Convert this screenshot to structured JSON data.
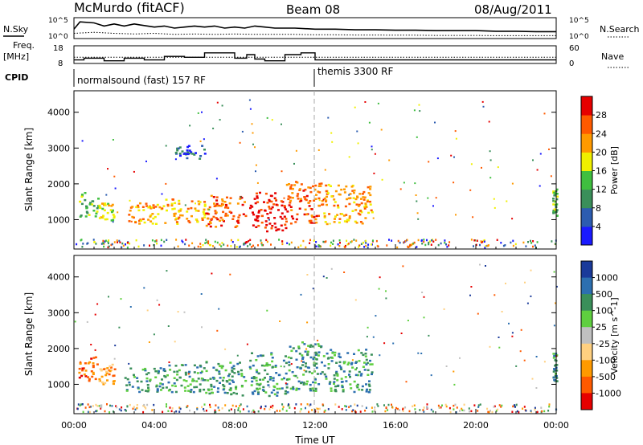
{
  "header": {
    "title": "McMurdo (fitACF)",
    "beam": "Beam 08",
    "date": "08/Aug/2011"
  },
  "chart_data": [
    {
      "type": "line",
      "panel": "noise",
      "left_label": "N.Sky",
      "right_label": "N.Search",
      "left_ticks": [
        "10^5",
        "10^0"
      ],
      "right_ticks": [
        "10^5",
        "10^0"
      ],
      "series": [
        {
          "style": "solid",
          "x": [
            0,
            0.3,
            1,
            1.5,
            2,
            2.5,
            3,
            3.3,
            4,
            4.5,
            5,
            5.5,
            6,
            6.5,
            7,
            7.5,
            8,
            8.5,
            9,
            9.5,
            10,
            11,
            12,
            13,
            14,
            15,
            16,
            17,
            18,
            19,
            20,
            21,
            22,
            23,
            24
          ],
          "y": [
            0.45,
            0.8,
            0.75,
            0.6,
            0.7,
            0.6,
            0.7,
            0.65,
            0.55,
            0.6,
            0.5,
            0.55,
            0.6,
            0.55,
            0.6,
            0.5,
            0.55,
            0.5,
            0.6,
            0.55,
            0.5,
            0.5,
            0.45,
            0.45,
            0.42,
            0.42,
            0.4,
            0.4,
            0.38,
            0.38,
            0.38,
            0.35,
            0.35,
            0.33,
            0.33
          ]
        },
        {
          "style": "dotted",
          "x": [
            0,
            1,
            2,
            3,
            4,
            5,
            6,
            7,
            8,
            9,
            10,
            11,
            12,
            13,
            14,
            15,
            16,
            17,
            18,
            19,
            20,
            21,
            22,
            23,
            24
          ],
          "y": [
            0.25,
            0.3,
            0.25,
            0.22,
            0.25,
            0.2,
            0.22,
            0.2,
            0.22,
            0.2,
            0.2,
            0.2,
            0.18,
            0.18,
            0.17,
            0.17,
            0.16,
            0.16,
            0.15,
            0.15,
            0.15,
            0.14,
            0.14,
            0.14,
            0.14
          ]
        }
      ]
    },
    {
      "type": "line",
      "panel": "frequency",
      "left_label": "Freq.",
      "left_unit": "[MHz]",
      "right_label": "Nave",
      "left_ticks": [
        "18",
        "8"
      ],
      "right_ticks": [
        "60",
        "0"
      ],
      "series": [
        {
          "style": "solid",
          "x": [
            0,
            0.5,
            0.5,
            1.5,
            1.5,
            2.5,
            2.5,
            3.5,
            3.5,
            4.5,
            4.5,
            5.5,
            5.5,
            6.5,
            6.5,
            8,
            8,
            8.6,
            8.6,
            9.0,
            9.0,
            9.5,
            9.5,
            10.5,
            10.5,
            11.3,
            11.3,
            12,
            12,
            24
          ],
          "y": [
            10,
            10,
            11,
            11,
            9.5,
            9.5,
            11,
            11,
            10,
            10,
            12,
            12,
            11.5,
            11.5,
            14,
            14,
            11,
            11,
            13,
            13,
            10.5,
            10.5,
            9.5,
            9.5,
            13,
            13,
            14,
            14,
            10,
            10
          ]
        },
        {
          "style": "dotted",
          "x": [
            0,
            24
          ],
          "y": [
            11.5,
            11.5
          ]
        }
      ]
    },
    {
      "type": "table",
      "panel": "cpid",
      "label": "CPID",
      "segments": [
        {
          "start": 0,
          "label": "normalsound (fast) 157 RF"
        },
        {
          "start": 12,
          "label": "themis 3300 RF"
        }
      ]
    },
    {
      "type": "heatmap",
      "panel": "power",
      "ylabel": "Slant Range [km]",
      "xlabel": "Time UT",
      "xlim": [
        0,
        24
      ],
      "ylim": [
        180,
        4600
      ],
      "y_ticks": [
        1000,
        2000,
        3000,
        4000
      ],
      "x_ticks": [
        "00:00",
        "04:00",
        "08:00",
        "12:00",
        "16:00",
        "20:00",
        "00:00"
      ],
      "colorbar": {
        "label": "Power [dB]",
        "ticks": [
          "4",
          "8",
          "12",
          "16",
          "20",
          "24",
          "28"
        ],
        "colors": [
          "#1a1aff",
          "#2c5cb0",
          "#3a8f5a",
          "#3fbf3f",
          "#f0f000",
          "#ff9a00",
          "#ff5a00",
          "#e60000"
        ]
      },
      "regions": [
        {
          "t": [
            0.2,
            1.2
          ],
          "r": [
            1100,
            1800
          ],
          "level": 3
        },
        {
          "t": [
            1.2,
            2.0
          ],
          "r": [
            1000,
            1500
          ],
          "level": 4
        },
        {
          "t": [
            2.5,
            4.5
          ],
          "r": [
            900,
            1500
          ],
          "level": 5
        },
        {
          "t": [
            4.5,
            6.5
          ],
          "r": [
            900,
            1600
          ],
          "level": 5
        },
        {
          "t": [
            6.5,
            8.5
          ],
          "r": [
            800,
            1700
          ],
          "level": 6
        },
        {
          "t": [
            8.7,
            10.5
          ],
          "r": [
            700,
            1800
          ],
          "level": 7
        },
        {
          "t": [
            10.5,
            12.3
          ],
          "r": [
            900,
            2100
          ],
          "level": 6
        },
        {
          "t": [
            12.3,
            14.8
          ],
          "r": [
            900,
            2000
          ],
          "level": 5
        },
        {
          "t": [
            5.0,
            6.5
          ],
          "r": [
            2700,
            3100
          ],
          "level": 1
        },
        {
          "t": [
            23.8,
            24
          ],
          "r": [
            1100,
            1900
          ],
          "level": 3
        }
      ]
    },
    {
      "type": "heatmap",
      "panel": "velocity",
      "ylabel": "Slant Range [km]",
      "xlabel": "Time UT",
      "xlim": [
        0,
        24
      ],
      "ylim": [
        180,
        4600
      ],
      "y_ticks": [
        1000,
        2000,
        3000,
        4000
      ],
      "x_ticks": [
        "00:00",
        "04:00",
        "08:00",
        "12:00",
        "16:00",
        "20:00",
        "00:00"
      ],
      "colorbar": {
        "label": "Velocity [m s^-1]",
        "ticks": [
          "1000",
          "500",
          "100",
          "25",
          "-25",
          "-100",
          "-500",
          "-1000"
        ],
        "colors": [
          "#1a3a9a",
          "#2c6fb0",
          "#3a8f5a",
          "#5fcf3f",
          "#c0c0c0",
          "#ffd080",
          "#ff9a00",
          "#ff5a00",
          "#e60000"
        ]
      },
      "regions": [
        {
          "t": [
            0.2,
            1.2
          ],
          "r": [
            1100,
            1800
          ],
          "level": 7
        },
        {
          "t": [
            1.2,
            2.0
          ],
          "r": [
            1000,
            1600
          ],
          "level": 6
        },
        {
          "t": [
            2.5,
            4.5
          ],
          "r": [
            800,
            1500
          ],
          "level": 2
        },
        {
          "t": [
            4.5,
            6.5
          ],
          "r": [
            800,
            1600
          ],
          "level": 2
        },
        {
          "t": [
            6.5,
            8.5
          ],
          "r": [
            700,
            1700
          ],
          "level": 2
        },
        {
          "t": [
            8.7,
            10.5
          ],
          "r": [
            700,
            1900
          ],
          "level": 2
        },
        {
          "t": [
            10.5,
            12.3
          ],
          "r": [
            800,
            2200
          ],
          "level": 2
        },
        {
          "t": [
            12.3,
            14.8
          ],
          "r": [
            800,
            2000
          ],
          "level": 2
        },
        {
          "t": [
            23.8,
            24
          ],
          "r": [
            1100,
            1900
          ],
          "level": 2
        }
      ]
    }
  ]
}
